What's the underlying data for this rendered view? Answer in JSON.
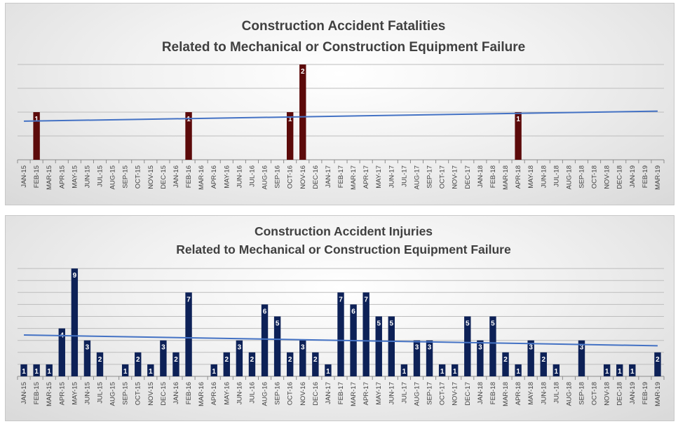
{
  "chart_data": [
    {
      "type": "bar",
      "title": "Construction Accident Fatalities",
      "subtitle": "Related to Mechanical or Construction Equipment Failure",
      "categories": [
        "JAN-15",
        "FEB-15",
        "MAR-15",
        "APR-15",
        "MAY-15",
        "JUN-15",
        "JUL-15",
        "AUG-15",
        "SEP-15",
        "OCT-15",
        "NOV-15",
        "DEC-15",
        "JAN-16",
        "FEB-16",
        "MAR-16",
        "APR-16",
        "MAY-16",
        "JUN-16",
        "JUL-16",
        "AUG-16",
        "SEP-16",
        "OCT-16",
        "NOV-16",
        "DEC-16",
        "JAN-17",
        "FEB-17",
        "MAR-17",
        "APR-17",
        "MAY-17",
        "JUN-17",
        "JUL-17",
        "AUG-17",
        "SEP-17",
        "OCT-17",
        "NOV-17",
        "DEC-17",
        "JAN-18",
        "FEB-18",
        "MAR-18",
        "APR-18",
        "MAY-18",
        "JUN-18",
        "JUL-18",
        "AUG-18",
        "SEP-18",
        "OCT-18",
        "NOV-18",
        "DEC-18",
        "JAN-19",
        "FEB-19",
        "MAR-19"
      ],
      "values": [
        0,
        1,
        0,
        0,
        0,
        0,
        0,
        0,
        0,
        0,
        0,
        0,
        0,
        1,
        0,
        0,
        0,
        0,
        0,
        0,
        0,
        1,
        2,
        0,
        0,
        0,
        0,
        0,
        0,
        0,
        0,
        0,
        0,
        0,
        0,
        0,
        0,
        0,
        0,
        1,
        0,
        0,
        0,
        0,
        0,
        0,
        0,
        0,
        0,
        0,
        0
      ],
      "trendline": {
        "start": 0.81,
        "end": 1.02
      },
      "ylim": [
        0,
        2
      ],
      "grid": true,
      "bar_color": "#5c0a0a",
      "trend_color": "#4472c4"
    },
    {
      "type": "bar",
      "title": "Construction Accident Injuries",
      "subtitle": "Related to Mechanical or Construction Equipment Failure",
      "categories": [
        "JAN-15",
        "FEB-15",
        "MAR-15",
        "APR-15",
        "MAY-15",
        "JUN-15",
        "JUL-15",
        "AUG-15",
        "SEP-15",
        "OCT-15",
        "NOV-15",
        "DEC-15",
        "JAN-16",
        "FEB-16",
        "MAR-16",
        "APR-16",
        "MAY-16",
        "JUN-16",
        "JUL-16",
        "AUG-16",
        "SEP-16",
        "OCT-16",
        "NOV-16",
        "DEC-16",
        "JAN-17",
        "FEB-17",
        "MAR-17",
        "APR-17",
        "MAY-17",
        "JUN-17",
        "JUL-17",
        "AUG-17",
        "SEP-17",
        "OCT-17",
        "NOV-17",
        "DEC-17",
        "JAN-18",
        "FEB-18",
        "MAR-18",
        "APR-18",
        "MAY-18",
        "JUN-18",
        "JUL-18",
        "AUG-18",
        "SEP-18",
        "OCT-18",
        "NOV-18",
        "DEC-18",
        "JAN-19",
        "FEB-19",
        "MAR-19"
      ],
      "values": [
        1,
        1,
        1,
        4,
        9,
        3,
        2,
        0,
        1,
        2,
        1,
        3,
        2,
        7,
        0,
        1,
        2,
        3,
        2,
        6,
        5,
        2,
        3,
        2,
        1,
        7,
        6,
        7,
        5,
        5,
        1,
        3,
        3,
        1,
        1,
        5,
        3,
        5,
        2,
        1,
        3,
        2,
        1,
        0,
        3,
        0,
        1,
        1,
        1,
        0,
        2
      ],
      "trendline": {
        "start": 3.45,
        "end": 2.55
      },
      "ylim": [
        0,
        9
      ],
      "grid": true,
      "bar_color": "#0d2157",
      "trend_color": "#4472c4"
    }
  ]
}
